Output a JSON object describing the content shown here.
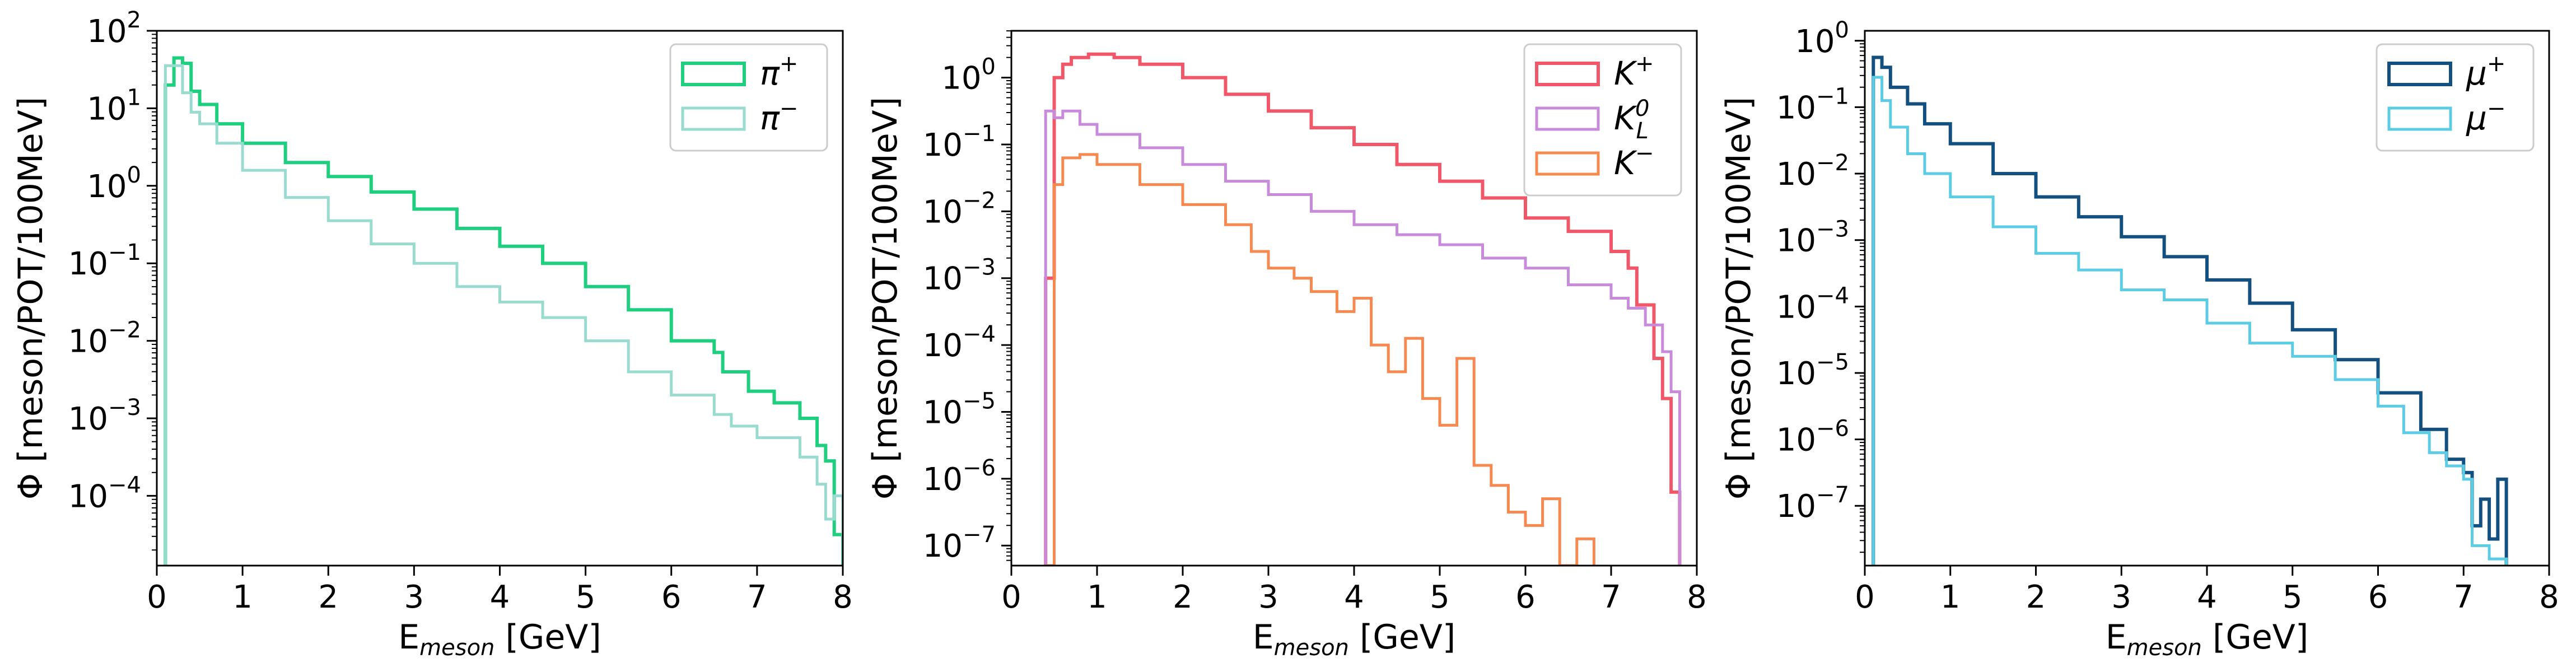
{
  "chart_data": [
    {
      "type": "histogram-step",
      "xlabel": {
        "main": "E",
        "sub": "meson",
        "unit": "[GeV]"
      },
      "ylabel": "Φ [meson/POT/100MeV]",
      "xlim": [
        0,
        8
      ],
      "xticks": [
        "0",
        "1",
        "2",
        "3",
        "4",
        "5",
        "6",
        "7",
        "8"
      ],
      "ylim_log10": [
        -4.9,
        2
      ],
      "yticks": [
        {
          "base": "10",
          "exp": "2"
        },
        {
          "base": "10",
          "exp": "1"
        },
        {
          "base": "10",
          "exp": "0"
        },
        {
          "base": "10",
          "exp": "−1"
        },
        {
          "base": "10",
          "exp": "−2"
        },
        {
          "base": "10",
          "exp": "−3"
        },
        {
          "base": "10",
          "exp": "−4"
        }
      ],
      "ytick_values": [
        2,
        1,
        0,
        -1,
        -2,
        -3,
        -4
      ],
      "legend_position": "top-right",
      "series": [
        {
          "name": {
            "base": "π",
            "sup": "+",
            "sub": ""
          },
          "color": "#1fcf7f",
          "width": 6,
          "points": [
            [
              0.1,
              1.3
            ],
            [
              0.2,
              1.65
            ],
            [
              0.3,
              1.58
            ],
            [
              0.4,
              1.22
            ],
            [
              0.5,
              1.05
            ],
            [
              0.7,
              0.8
            ],
            [
              1,
              0.55
            ],
            [
              1.5,
              0.3
            ],
            [
              2,
              0.12
            ],
            [
              2.5,
              -0.08
            ],
            [
              3,
              -0.3
            ],
            [
              3.5,
              -0.55
            ],
            [
              4,
              -0.78
            ],
            [
              4.5,
              -1.0
            ],
            [
              5,
              -1.3
            ],
            [
              5.5,
              -1.6
            ],
            [
              6,
              -2.0
            ],
            [
              6.5,
              -2.15
            ],
            [
              6.6,
              -2.4
            ],
            [
              6.9,
              -2.65
            ],
            [
              7.2,
              -2.8
            ],
            [
              7.5,
              -3.0
            ],
            [
              7.7,
              -3.35
            ],
            [
              7.8,
              -3.55
            ],
            [
              7.9,
              -4.5
            ],
            [
              8,
              -4.5
            ]
          ]
        },
        {
          "name": {
            "base": "π",
            "sup": "−",
            "sub": ""
          },
          "color": "#99dbcf",
          "width": 5,
          "points": [
            [
              0.1,
              1.55
            ],
            [
              0.2,
              1.55
            ],
            [
              0.3,
              1.2
            ],
            [
              0.4,
              0.95
            ],
            [
              0.5,
              0.8
            ],
            [
              0.7,
              0.55
            ],
            [
              1,
              0.2
            ],
            [
              1.5,
              -0.15
            ],
            [
              2,
              -0.45
            ],
            [
              2.5,
              -0.75
            ],
            [
              3,
              -1.0
            ],
            [
              3.5,
              -1.3
            ],
            [
              4,
              -1.5
            ],
            [
              4.5,
              -1.7
            ],
            [
              5,
              -2.0
            ],
            [
              5.5,
              -2.4
            ],
            [
              6,
              -2.7
            ],
            [
              6.5,
              -2.95
            ],
            [
              6.7,
              -3.1
            ],
            [
              7,
              -3.25
            ],
            [
              7.5,
              -3.5
            ],
            [
              7.7,
              -3.85
            ],
            [
              7.8,
              -4.3
            ],
            [
              7.9,
              -4.0
            ],
            [
              8,
              -4.3
            ]
          ]
        }
      ]
    },
    {
      "type": "histogram-step",
      "xlabel": {
        "main": "E",
        "sub": "meson",
        "unit": "[GeV]"
      },
      "ylabel": "Φ [meson/POT/100MeV]",
      "xlim": [
        0,
        8
      ],
      "xticks": [
        "0",
        "1",
        "2",
        "3",
        "4",
        "5",
        "6",
        "7",
        "8"
      ],
      "ylim_log10": [
        -7.3,
        0.7
      ],
      "yticks": [
        {
          "base": "10",
          "exp": "0"
        },
        {
          "base": "10",
          "exp": "−1"
        },
        {
          "base": "10",
          "exp": "−2"
        },
        {
          "base": "10",
          "exp": "−3"
        },
        {
          "base": "10",
          "exp": "−4"
        },
        {
          "base": "10",
          "exp": "−5"
        },
        {
          "base": "10",
          "exp": "−6"
        },
        {
          "base": "10",
          "exp": "−7"
        }
      ],
      "ytick_values": [
        0,
        -1,
        -2,
        -3,
        -4,
        -5,
        -6,
        -7
      ],
      "legend_position": "top-right",
      "series": [
        {
          "name": {
            "base": "K",
            "sup": "+",
            "sub": ""
          },
          "color": "#f0586a",
          "width": 6,
          "points": [
            [
              0.4,
              -3.0
            ],
            [
              0.5,
              0.0
            ],
            [
              0.6,
              0.2
            ],
            [
              0.7,
              0.3
            ],
            [
              0.9,
              0.35
            ],
            [
              1.2,
              0.3
            ],
            [
              1.5,
              0.2
            ],
            [
              2,
              0.0
            ],
            [
              2.5,
              -0.25
            ],
            [
              3,
              -0.5
            ],
            [
              3.5,
              -0.75
            ],
            [
              4,
              -1.0
            ],
            [
              4.5,
              -1.3
            ],
            [
              5,
              -1.55
            ],
            [
              5.5,
              -1.8
            ],
            [
              6,
              -2.1
            ],
            [
              6.5,
              -2.3
            ],
            [
              7,
              -2.6
            ],
            [
              7.2,
              -2.85
            ],
            [
              7.3,
              -3.4
            ],
            [
              7.5,
              -4.2
            ],
            [
              7.6,
              -4.8
            ],
            [
              7.7,
              -6.2
            ],
            [
              7.8,
              -6.2
            ]
          ]
        },
        {
          "name": {
            "base": "K",
            "sup": "0",
            "sub": "L"
          },
          "color": "#c88bdc",
          "width": 5,
          "points": [
            [
              0.4,
              -0.5
            ],
            [
              0.5,
              -0.6
            ],
            [
              0.6,
              -0.5
            ],
            [
              0.8,
              -0.7
            ],
            [
              1,
              -0.85
            ],
            [
              1.5,
              -1.05
            ],
            [
              2,
              -1.3
            ],
            [
              2.5,
              -1.55
            ],
            [
              3,
              -1.75
            ],
            [
              3.5,
              -2.0
            ],
            [
              4,
              -2.2
            ],
            [
              4.5,
              -2.35
            ],
            [
              5,
              -2.5
            ],
            [
              5.5,
              -2.7
            ],
            [
              6,
              -2.85
            ],
            [
              6.5,
              -3.1
            ],
            [
              7,
              -3.3
            ],
            [
              7.2,
              -3.45
            ],
            [
              7.4,
              -3.7
            ],
            [
              7.6,
              -4.1
            ],
            [
              7.7,
              -4.7
            ],
            [
              7.8,
              -7.3
            ]
          ]
        },
        {
          "name": {
            "base": "K",
            "sup": "−",
            "sub": ""
          },
          "color": "#f5894f",
          "width": 5,
          "points": [
            [
              0.4,
              -7.3
            ],
            [
              0.5,
              -1.6
            ],
            [
              0.6,
              -1.2
            ],
            [
              0.8,
              -1.15
            ],
            [
              1,
              -1.3
            ],
            [
              1.5,
              -1.6
            ],
            [
              2,
              -1.9
            ],
            [
              2.5,
              -2.2
            ],
            [
              2.8,
              -2.6
            ],
            [
              3,
              -2.85
            ],
            [
              3.3,
              -3.0
            ],
            [
              3.5,
              -3.2
            ],
            [
              3.8,
              -3.5
            ],
            [
              4,
              -3.3
            ],
            [
              4.2,
              -4.0
            ],
            [
              4.4,
              -4.4
            ],
            [
              4.6,
              -3.9
            ],
            [
              4.8,
              -4.8
            ],
            [
              5,
              -5.2
            ],
            [
              5.2,
              -4.2
            ],
            [
              5.4,
              -5.8
            ],
            [
              5.6,
              -6.1
            ],
            [
              5.8,
              -6.5
            ],
            [
              6,
              -6.7
            ],
            [
              6.2,
              -6.3
            ],
            [
              6.4,
              -7.3
            ],
            [
              6.6,
              -6.9
            ],
            [
              6.8,
              -7.3
            ]
          ]
        }
      ]
    },
    {
      "type": "histogram-step",
      "xlabel": {
        "main": "E",
        "sub": "meson",
        "unit": "[GeV]"
      },
      "ylabel": "Φ [meson/POT/100MeV]",
      "xlim": [
        0,
        8
      ],
      "xticks": [
        "0",
        "1",
        "2",
        "3",
        "4",
        "5",
        "6",
        "7",
        "8"
      ],
      "ylim_log10": [
        -7.9,
        0.15
      ],
      "yticks": [
        {
          "base": "10",
          "exp": "0"
        },
        {
          "base": "10",
          "exp": "−1"
        },
        {
          "base": "10",
          "exp": "−2"
        },
        {
          "base": "10",
          "exp": "−3"
        },
        {
          "base": "10",
          "exp": "−4"
        },
        {
          "base": "10",
          "exp": "−5"
        },
        {
          "base": "10",
          "exp": "−6"
        },
        {
          "base": "10",
          "exp": "−7"
        }
      ],
      "ytick_values": [
        0,
        -1,
        -2,
        -3,
        -4,
        -5,
        -6,
        -7
      ],
      "legend_position": "top-right",
      "series": [
        {
          "name": {
            "base": "μ",
            "sup": "+",
            "sub": ""
          },
          "color": "#14507f",
          "width": 6,
          "points": [
            [
              0.1,
              -0.25
            ],
            [
              0.2,
              -0.4
            ],
            [
              0.3,
              -0.7
            ],
            [
              0.5,
              -0.95
            ],
            [
              0.7,
              -1.25
            ],
            [
              1,
              -1.55
            ],
            [
              1.5,
              -2.0
            ],
            [
              2,
              -2.35
            ],
            [
              2.5,
              -2.65
            ],
            [
              3,
              -2.95
            ],
            [
              3.5,
              -3.25
            ],
            [
              4,
              -3.6
            ],
            [
              4.5,
              -3.95
            ],
            [
              5,
              -4.35
            ],
            [
              5.5,
              -4.8
            ],
            [
              6,
              -5.3
            ],
            [
              6.5,
              -5.85
            ],
            [
              6.8,
              -6.3
            ],
            [
              7,
              -6.5
            ],
            [
              7.1,
              -7.3
            ],
            [
              7.2,
              -6.9
            ],
            [
              7.3,
              -7.5
            ],
            [
              7.4,
              -6.6
            ],
            [
              7.5,
              -7.9
            ]
          ]
        },
        {
          "name": {
            "base": "μ",
            "sup": "−",
            "sub": ""
          },
          "color": "#5ccbe4",
          "width": 5,
          "points": [
            [
              0.1,
              -0.55
            ],
            [
              0.2,
              -0.9
            ],
            [
              0.3,
              -1.3
            ],
            [
              0.5,
              -1.7
            ],
            [
              0.7,
              -2.0
            ],
            [
              1,
              -2.35
            ],
            [
              1.5,
              -2.8
            ],
            [
              2,
              -3.2
            ],
            [
              2.5,
              -3.45
            ],
            [
              3,
              -3.75
            ],
            [
              3.5,
              -3.9
            ],
            [
              4,
              -4.25
            ],
            [
              4.5,
              -4.55
            ],
            [
              5,
              -4.75
            ],
            [
              5.5,
              -5.1
            ],
            [
              6,
              -5.5
            ],
            [
              6.3,
              -5.9
            ],
            [
              6.6,
              -6.2
            ],
            [
              6.8,
              -6.4
            ],
            [
              7,
              -6.6
            ],
            [
              7.1,
              -7.6
            ],
            [
              7.3,
              -7.8
            ],
            [
              7.5,
              -7.9
            ]
          ]
        }
      ]
    }
  ]
}
